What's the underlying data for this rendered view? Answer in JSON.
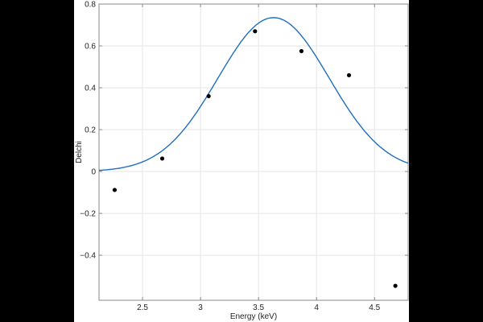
{
  "chart_data": {
    "type": "scatter",
    "title": "",
    "xlabel": "Energy (keV)",
    "ylabel": "Delchi",
    "xlim": [
      2.125,
      4.79
    ],
    "ylim": [
      -0.615,
      0.8
    ],
    "xticks": [
      2.5,
      3,
      3.5,
      4,
      4.5
    ],
    "xtick_labels": [
      "2.5",
      "3",
      "3.5",
      "4",
      "4.5"
    ],
    "yticks": [
      -0.4,
      -0.2,
      0,
      0.2,
      0.4,
      0.6,
      0.8
    ],
    "ytick_labels": [
      "−0.4",
      "−0.2",
      "0",
      "0.2",
      "0.4",
      "0.6",
      "0.8"
    ],
    "grid": true,
    "series": [
      {
        "name": "data",
        "type": "scatter",
        "color": "#000000",
        "x": [
          2.26,
          2.67,
          3.07,
          3.47,
          3.87,
          4.28,
          4.68
        ],
        "y": [
          -0.088,
          0.062,
          0.36,
          0.67,
          0.575,
          0.46,
          -0.546
        ]
      },
      {
        "name": "model",
        "type": "line",
        "color": "#1f6fbf",
        "model": "gaussian",
        "amplitude": 0.735,
        "center": 3.63,
        "sigma": 0.48
      }
    ]
  }
}
